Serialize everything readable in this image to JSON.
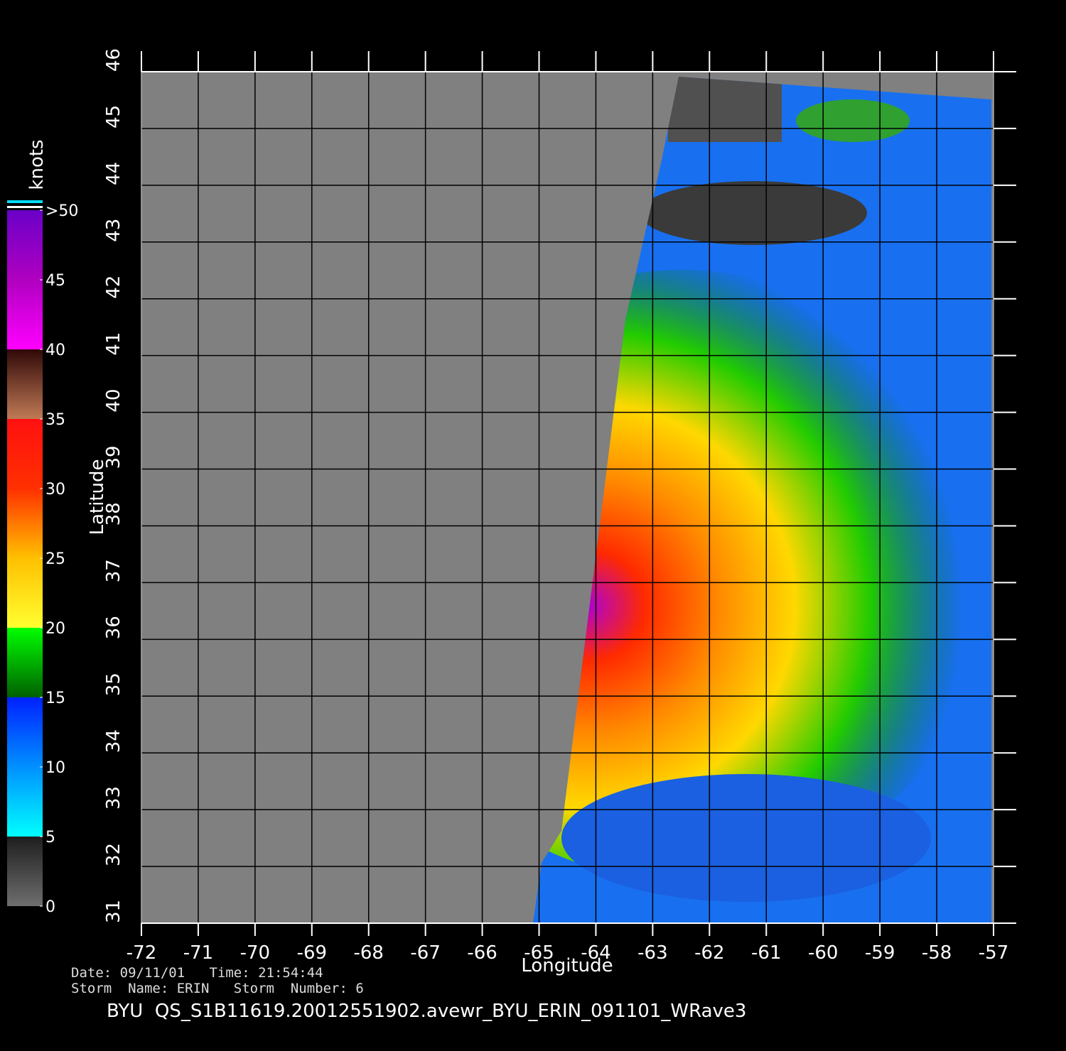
{
  "map": {
    "x_label": "Longitude",
    "y_label": "Latitude",
    "xlim": [
      -72,
      -57
    ],
    "ylim": [
      31,
      46
    ],
    "xticks": [
      -72,
      -71,
      -70,
      -69,
      -68,
      -67,
      -66,
      -65,
      -64,
      -63,
      -62,
      -61,
      -60,
      -59,
      -58,
      -57
    ],
    "yticks": [
      31,
      32,
      33,
      34,
      35,
      36,
      37,
      38,
      39,
      40,
      41,
      42,
      43,
      44,
      45,
      46
    ],
    "grid": true
  },
  "colorbar": {
    "title": "knots",
    "lim": [
      0,
      50
    ],
    "ticks": [
      0,
      5,
      10,
      15,
      20,
      25,
      30,
      35,
      40,
      45,
      {
        "value": 50,
        "label": ">50"
      }
    ]
  },
  "footer": {
    "line1": "Date: 09/11/01   Time: 21:54:44",
    "line2": "Storm  Name: ERIN   Storm  Number: 6",
    "file": "BYU  QS_S1B11619.20012551902.avewr_BYU_ERIN_091101_WRave3"
  }
}
